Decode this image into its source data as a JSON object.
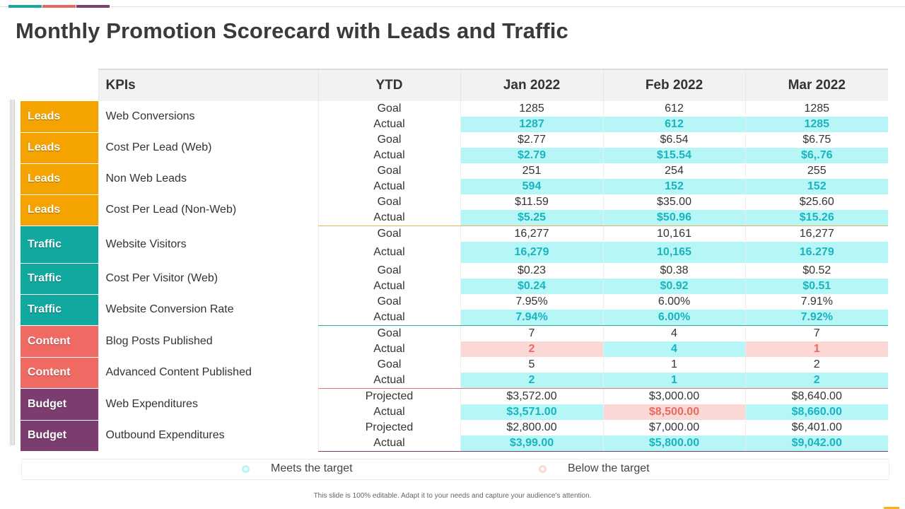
{
  "title": "Monthly Promotion Scorecard with Leads and Traffic",
  "colors": {
    "accent_teal": "#1aa6a0",
    "accent_coral": "#e7685f",
    "accent_purple": "#7b3f72",
    "leads": "#f5a300",
    "traffic": "#11a8a0",
    "content": "#ee6a63",
    "budget": "#7b3d6f",
    "meets": "#b7f6f6",
    "below": "#fbd7d5"
  },
  "headers": {
    "kpis": "KPIs",
    "ytd": "YTD",
    "jan": "Jan 2022",
    "feb": "Feb 2022",
    "mar": "Mar 2022"
  },
  "rows": [
    {
      "category": "Leads",
      "kpi": "Web Conversions",
      "goal": {
        "label": "Goal",
        "jan": "1285",
        "feb": "612",
        "mar": "1285"
      },
      "actual": {
        "label": "Actual",
        "jan": "1287",
        "feb": "612",
        "mar": "1285"
      }
    },
    {
      "category": "Leads",
      "kpi": "Cost Per Lead (Web)",
      "goal": {
        "label": "Goal",
        "jan": "$2.77",
        "feb": "$6.54",
        "mar": "$6.75"
      },
      "actual": {
        "label": "Actual",
        "jan": "$2.79",
        "feb": "$15.54",
        "mar": "$6,.76"
      }
    },
    {
      "category": "Leads",
      "kpi": "Non Web Leads",
      "goal": {
        "label": "Goal",
        "jan": "251",
        "feb": "254",
        "mar": "255"
      },
      "actual": {
        "label": "Actual",
        "jan": "594",
        "feb": "152",
        "mar": "152"
      }
    },
    {
      "category": "Leads",
      "kpi": "Cost Per Lead (Non-Web)",
      "goal": {
        "label": "Goal",
        "jan": "$11.59",
        "feb": "$35.00",
        "mar": "$25.60"
      },
      "actual": {
        "label": "Actual",
        "jan": "$5.25",
        "feb": "$50.96",
        "mar": "$15.26"
      }
    },
    {
      "category": "Traffic",
      "kpi": "Website Visitors",
      "goal": {
        "label": "Goal",
        "jan": "16,277",
        "feb": "10,161",
        "mar": "16,277"
      },
      "actual": {
        "label": "Actual",
        "jan": "16,279",
        "feb": "10,165",
        "mar": "16.279"
      }
    },
    {
      "category": "Traffic",
      "kpi": "Cost Per Visitor (Web)",
      "goal": {
        "label": "Goal",
        "jan": "$0.23",
        "feb": "$0.38",
        "mar": "$0.52"
      },
      "actual": {
        "label": "Actual",
        "jan": "$0.24",
        "feb": "$0.92",
        "mar": "$0.51"
      }
    },
    {
      "category": "Traffic",
      "kpi": "Website Conversion Rate",
      "goal": {
        "label": "Goal",
        "jan": "7.95%",
        "feb": "6.00%",
        "mar": "7.91%"
      },
      "actual": {
        "label": "Actual",
        "jan": "7.94%",
        "feb": "6.00%",
        "mar": "7.92%"
      }
    },
    {
      "category": "Content",
      "kpi": "Blog Posts Published",
      "goal": {
        "label": "Goal",
        "jan": "7",
        "feb": "4",
        "mar": "7"
      },
      "actual": {
        "label": "Actual",
        "jan": "2",
        "feb": "4",
        "mar": "1"
      }
    },
    {
      "category": "Content",
      "kpi": "Advanced Content Published",
      "goal": {
        "label": "Goal",
        "jan": "5",
        "feb": "1",
        "mar": "2"
      },
      "actual": {
        "label": "Actual",
        "jan": "2",
        "feb": "1",
        "mar": "2"
      }
    },
    {
      "category": "Budget",
      "kpi": "Web Expenditures",
      "goal": {
        "label": "Projected",
        "jan": "$3,572.00",
        "feb": "$3,000.00",
        "mar": "$8,640.00"
      },
      "actual": {
        "label": "Actual",
        "jan": "$3,571.00",
        "feb": "$8,500.00",
        "mar": "$8,660.00"
      }
    },
    {
      "category": "Budget",
      "kpi": "Outbound  Expenditures",
      "goal": {
        "label": "Projected",
        "jan": "$2,800.00",
        "feb": "$7,000.00",
        "mar": "$6,401.00"
      },
      "actual": {
        "label": "Actual",
        "jan": "$3,99.00",
        "feb": "$5,800.00",
        "mar": "$9,042.00"
      }
    }
  ],
  "legend": {
    "meets": "Meets the target",
    "below": "Below the target"
  },
  "footnote": "This slide is 100% editable. Adapt it to your needs and capture your audience’s attention."
}
